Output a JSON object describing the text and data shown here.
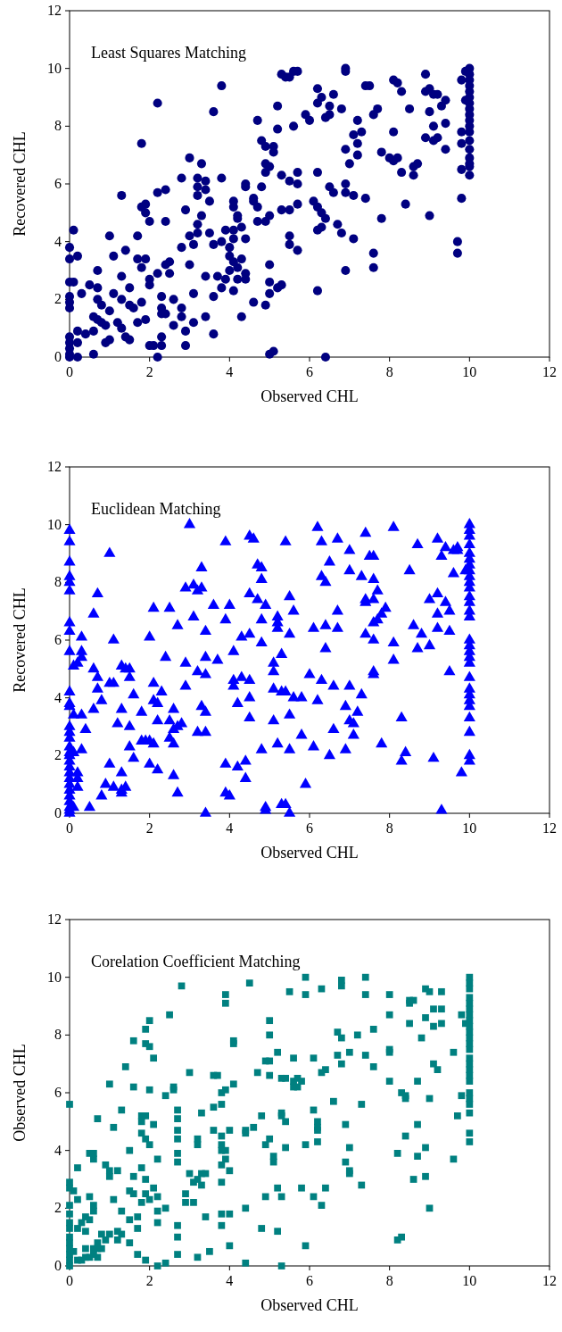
{
  "chart_data": [
    {
      "type": "scatter",
      "title": "Least Squares Matching",
      "xlabel": "Observed CHL",
      "ylabel": "Recovered CHL",
      "xlim": [
        0,
        12
      ],
      "ylim": [
        0,
        12
      ],
      "xticks": [
        0,
        2,
        4,
        6,
        8,
        10,
        12
      ],
      "yticks": [
        0,
        2,
        4,
        6,
        8,
        10,
        12
      ],
      "grid": false,
      "marker": "circle",
      "color": "#000080",
      "x": [
        0,
        0,
        0,
        0,
        0,
        0,
        0,
        0,
        0,
        0,
        0,
        0.1,
        0.2,
        0.1,
        0.2,
        0.2,
        0.2,
        0.3,
        0.4,
        0.5,
        0.6,
        0.6,
        0.6,
        0.7,
        0.7,
        0.7,
        0.7,
        0.8,
        0.8,
        0.9,
        0.9,
        1.0,
        1.0,
        1.0,
        1.1,
        1.1,
        1.2,
        1.3,
        1.3,
        1.3,
        1.3,
        1.4,
        1.5,
        1.4,
        1.5,
        1.5,
        1.6,
        1.7,
        1.7,
        1.7,
        1.8,
        1.8,
        1.8,
        1.8,
        1.9,
        1.9,
        1.9,
        1.9,
        2.0,
        2.0,
        2.0,
        2.0,
        2.1,
        2.2,
        2.2,
        2.2,
        2.2,
        2.3,
        2.3,
        2.3,
        2.3,
        2.3,
        2.4,
        2.4,
        2.4,
        2.4,
        2.5,
        2.5,
        2.6,
        2.6,
        2.8,
        2.8,
        2.8,
        2.8,
        2.9,
        2.9,
        2.9,
        3.0,
        3.0,
        3.0,
        3.1,
        3.1,
        3.1,
        3.2,
        3.2,
        3.2,
        3.2,
        3.2,
        3.3,
        3.3,
        3.4,
        3.4,
        3.4,
        3.4,
        3.5,
        3.5,
        3.6,
        3.6,
        3.6,
        3.6,
        3.7,
        3.8,
        3.8,
        3.8,
        3.8,
        3.9,
        3.9,
        4.0,
        4.0,
        4.0,
        4.1,
        4.1,
        4.1,
        4.1,
        4.1,
        4.1,
        4.2,
        4.2,
        4.2,
        4.2,
        4.3,
        4.3,
        4.3,
        4.4,
        4.4,
        4.4,
        4.4,
        4.4,
        4.6,
        4.6,
        4.6,
        4.7,
        4.7,
        4.7,
        4.8,
        4.8,
        4.9,
        4.9,
        4.9,
        4.9,
        4.9,
        5.0,
        5.0,
        5.0,
        5.0,
        5.0,
        5.0,
        5.1,
        5.1,
        5.1,
        5.2,
        5.2,
        5.2,
        5.3,
        5.3,
        5.3,
        5.3,
        5.4,
        5.5,
        5.5,
        5.5,
        5.5,
        5.5,
        5.6,
        5.6,
        5.7,
        5.7,
        5.7,
        5.7,
        5.7,
        5.9,
        6.0,
        6.1,
        6.2,
        6.2,
        6.2,
        6.2,
        6.2,
        6.2,
        6.3,
        6.3,
        6.3,
        6.4,
        6.4,
        6.4,
        6.5,
        6.5,
        6.5,
        6.6,
        6.6,
        6.7,
        6.8,
        6.8,
        6.9,
        6.9,
        6.9,
        6.9,
        6.9,
        6.9,
        7.0,
        7.1,
        7.1,
        7.1,
        7.2,
        7.2,
        7.2,
        7.3,
        7.4,
        7.5,
        7.4,
        7.6,
        7.6,
        7.6,
        7.7,
        7.8,
        7.8,
        8.0,
        8.1,
        8.1,
        8.1,
        8.2,
        8.2,
        8.3,
        8.3,
        8.4,
        8.5,
        8.6,
        8.6,
        8.7,
        8.9,
        8.9,
        8.9,
        9.0,
        9.0,
        9.0,
        9.1,
        9.1,
        9.1,
        9.2,
        9.2,
        9.3,
        9.4,
        9.4,
        9.4,
        9.7,
        9.7,
        9.8,
        9.8,
        9.8,
        9.8,
        9.8,
        9.9,
        9.9,
        10,
        10,
        10,
        10,
        10,
        10,
        10,
        10,
        10,
        10,
        10,
        10,
        10,
        10,
        10,
        10,
        10,
        10
      ],
      "values": [
        3.8,
        3.4,
        2.6,
        2.1,
        1.9,
        1.7,
        0.7,
        0.5,
        0.3,
        0.1,
        0,
        4.4,
        3.5,
        2.6,
        0.9,
        0,
        0.5,
        2.2,
        0.8,
        2.5,
        1.4,
        0.9,
        0.1,
        3.0,
        2.4,
        2.0,
        1.3,
        1.2,
        1.8,
        1.1,
        0.5,
        0.6,
        1.6,
        4.2,
        3.5,
        2.2,
        1.2,
        5.6,
        2.8,
        2.0,
        1.0,
        3.7,
        2.4,
        0.7,
        0.6,
        1.8,
        1.7,
        4.2,
        3.4,
        1.2,
        1.9,
        7.4,
        5.2,
        3.1,
        5.3,
        5.0,
        3.4,
        1.3,
        4.7,
        2.7,
        2.5,
        0.4,
        0.4,
        8.8,
        5.7,
        2.9,
        0,
        2.1,
        1.7,
        1.5,
        0.7,
        0.4,
        5.8,
        4.7,
        3.2,
        1.5,
        3.3,
        2.9,
        2.0,
        1.1,
        6.2,
        3.8,
        1.7,
        1.4,
        5.1,
        0.9,
        0.4,
        6.9,
        4.2,
        3.2,
        2.2,
        1.2,
        3.9,
        6.2,
        5.9,
        5.6,
        4.6,
        4.3,
        6.7,
        4.9,
        6.1,
        5.8,
        2.8,
        1.4,
        5.4,
        4.3,
        8.5,
        3.9,
        2.1,
        0.8,
        2.8,
        9.4,
        6.2,
        4.0,
        2.4,
        2.7,
        4.4,
        3.8,
        3.5,
        3.0,
        5.4,
        5.2,
        4.4,
        4.1,
        3.3,
        2.3,
        4.9,
        4.8,
        3.1,
        2.7,
        4.5,
        1.4,
        3.4,
        5.9,
        6.0,
        4.1,
        2.9,
        2.7,
        5.4,
        5.5,
        1.9,
        8.2,
        5.2,
        4.7,
        7.5,
        5.9,
        7.3,
        6.4,
        6.7,
        4.7,
        1.8,
        6.6,
        4.9,
        3.2,
        2.6,
        2.2,
        0.1,
        0.2,
        7.3,
        7.1,
        8.7,
        7.9,
        2.4,
        9.8,
        6.3,
        5.1,
        2.5,
        9.7,
        9.7,
        6.1,
        5.1,
        4.2,
        3.9,
        9.9,
        8.0,
        9.9,
        6.4,
        6.0,
        3.7,
        5.3,
        8.4,
        8.2,
        5.4,
        9.3,
        8.8,
        6.4,
        5.2,
        4.4,
        2.3,
        9.0,
        5.0,
        4.5,
        0,
        4.8,
        8.3,
        8.7,
        8.4,
        5.9,
        9.1,
        5.7,
        4.6,
        8.6,
        4.3,
        10,
        9.9,
        7.2,
        6.0,
        5.7,
        3.0,
        6.7,
        5.6,
        4.1,
        7.7,
        8.2,
        7.4,
        7.0,
        7.8,
        9.4,
        9.4,
        5.5,
        8.4,
        3.1,
        3.6,
        8.6,
        7.1,
        4.8,
        6.9,
        9.6,
        7.8,
        6.8,
        6.9,
        9.5,
        9.2,
        6.4,
        5.3,
        8.6,
        6.6,
        6.3,
        6.7,
        9.8,
        9.2,
        7.6,
        9.3,
        8.5,
        4.9,
        9.1,
        7.5,
        8.0,
        7.6,
        9.1,
        8.7,
        8.9,
        8.1,
        7.2,
        4.0,
        3.6,
        9.6,
        7.8,
        7.4,
        5.5,
        6.5,
        8.9,
        9.9,
        10.0,
        9.8,
        9.6,
        9.4,
        9.2,
        9.0,
        8.8,
        8.6,
        8.4,
        8.2,
        8.0,
        7.8,
        7.5,
        7.2,
        6.9,
        6.7,
        6.6,
        6.3
      ]
    },
    {
      "type": "scatter",
      "title": "Euclidean Matching",
      "xlabel": "Observed CHL",
      "ylabel": "Recovered CHL",
      "xlim": [
        0,
        12
      ],
      "ylim": [
        0,
        12
      ],
      "xticks": [
        0,
        2,
        4,
        6,
        8,
        10,
        12
      ],
      "yticks": [
        0,
        2,
        4,
        6,
        8,
        10,
        12
      ],
      "grid": false,
      "marker": "triangle",
      "color": "#0000ff",
      "x": [
        0,
        0,
        0,
        0,
        0,
        0,
        0,
        0,
        0,
        0,
        0,
        0,
        0,
        0,
        0,
        0,
        0,
        0,
        0,
        0,
        0,
        0,
        0,
        0,
        0,
        0,
        0,
        0,
        0,
        0.1,
        0.1,
        0.1,
        0.1,
        0.2,
        0.2,
        0.2,
        0.2,
        0.3,
        0.3,
        0.3,
        0.3,
        0.3,
        0.4,
        0.5,
        0.6,
        0.6,
        0.6,
        0.7,
        0.7,
        0.7,
        0.8,
        0.8,
        0.9,
        1.0,
        1.0,
        1.0,
        1.1,
        1.1,
        1.1,
        1.2,
        1.3,
        1.3,
        1.3,
        1.3,
        1.3,
        1.4,
        1.4,
        1.5,
        1.5,
        1.5,
        1.5,
        1.6,
        1.6,
        1.8,
        1.8,
        1.9,
        2.0,
        2.0,
        2.0,
        2.1,
        2.1,
        2.1,
        2.1,
        2.2,
        2.2,
        2.2,
        2.3,
        2.4,
        2.5,
        2.5,
        2.5,
        2.6,
        2.6,
        2.6,
        2.6,
        2.7,
        2.7,
        2.7,
        2.8,
        2.9,
        2.9,
        2.9,
        3.0,
        3.1,
        3.1,
        3.2,
        3.2,
        3.2,
        3.3,
        3.3,
        3.3,
        3.4,
        3.4,
        3.4,
        3.4,
        3.4,
        3.4,
        3.6,
        3.7,
        3.9,
        3.9,
        3.9,
        3.9,
        4.0,
        4.0,
        4.1,
        4.1,
        4.1,
        4.2,
        4.2,
        4.3,
        4.3,
        4.4,
        4.4,
        4.5,
        4.5,
        4.5,
        4.5,
        4.5,
        4.5,
        4.6,
        4.7,
        4.7,
        4.8,
        4.8,
        4.8,
        4.8,
        4.8,
        4.9,
        4.9,
        4.9,
        5.1,
        5.1,
        5.1,
        5.1,
        5.2,
        5.2,
        5.2,
        5.2,
        5.3,
        5.3,
        5.4,
        5.3,
        5.4,
        5.5,
        5.4,
        5.5,
        5.5,
        5.5,
        5.5,
        5.6,
        5.6,
        5.8,
        5.8,
        5.9,
        6.0,
        6.1,
        6.1,
        6.2,
        6.2,
        6.3,
        6.3,
        6.3,
        6.4,
        6.4,
        6.4,
        6.5,
        6.5,
        6.6,
        6.6,
        6.7,
        6.7,
        6.7,
        6.9,
        6.9,
        7.0,
        7.0,
        7.0,
        7.0,
        7.1,
        7.1,
        7.2,
        7.3,
        7.3,
        7.4,
        7.4,
        7.4,
        7.4,
        7.5,
        7.6,
        7.6,
        7.6,
        7.6,
        7.6,
        7.6,
        7.6,
        7.7,
        7.7,
        7.8,
        7.8,
        7.9,
        8.1,
        8.1,
        8.1,
        8.3,
        8.3,
        8.4,
        8.5,
        8.6,
        8.7,
        8.7,
        8.8,
        9.0,
        9.0,
        9.1,
        9.2,
        9.2,
        9.2,
        9.2,
        9.3,
        9.3,
        9.4,
        9.4,
        9.5,
        9.5,
        9.5,
        9.6,
        9.6,
        9.7,
        9.7,
        9.8,
        9.9,
        10,
        10,
        10,
        10,
        10,
        10,
        10,
        10,
        10,
        10,
        10,
        10,
        10,
        10,
        10,
        10,
        10,
        10,
        10,
        10,
        10,
        10,
        10,
        10,
        10,
        10,
        10,
        10,
        10
      ],
      "values": [
        9.8,
        9.4,
        8.7,
        8.2,
        8.0,
        7.7,
        6.6,
        6.3,
        5.6,
        4.2,
        3.8,
        3.7,
        3.0,
        2.8,
        2.6,
        2.3,
        2.1,
        2.0,
        1.8,
        1.6,
        1.4,
        1.2,
        1.0,
        0.8,
        0.6,
        0.4,
        0.2,
        0.1,
        0,
        5.1,
        3.4,
        2.1,
        0.2,
        5.2,
        1.4,
        1.2,
        0.9,
        6.1,
        5.6,
        5.4,
        3.4,
        2.2,
        2.9,
        0.2,
        6.9,
        5.0,
        3.6,
        7.6,
        4.7,
        4.3,
        3.9,
        0.6,
        1.0,
        9.0,
        4.5,
        1.7,
        6.0,
        4.5,
        0.9,
        3.1,
        5.1,
        3.6,
        1.4,
        0.8,
        0.7,
        5.0,
        0.9,
        5.0,
        4.7,
        3.0,
        2.3,
        4.1,
        1.9,
        3.5,
        2.5,
        2.5,
        2.5,
        6.1,
        1.7,
        7.1,
        4.5,
        3.9,
        2.4,
        3.8,
        3.2,
        1.5,
        4.2,
        5.4,
        7.1,
        3.2,
        2.6,
        3.6,
        2.9,
        2.4,
        1.3,
        6.5,
        3.0,
        0.7,
        3.1,
        7.8,
        4.4,
        5.2,
        10.0,
        7.9,
        6.8,
        7.7,
        4.9,
        2.8,
        8.5,
        7.8,
        3.7,
        6.3,
        5.4,
        4.8,
        3.5,
        2.8,
        0,
        7.2,
        5.3,
        9.4,
        6.7,
        1.7,
        0.7,
        7.2,
        0.6,
        5.6,
        4.6,
        4.4,
        3.8,
        1.6,
        6.1,
        4.7,
        1.8,
        1.2,
        9.6,
        7.6,
        6.2,
        4.6,
        4.0,
        3.3,
        9.5,
        8.6,
        7.4,
        8.5,
        8.1,
        6.7,
        5.9,
        2.2,
        7.2,
        0.2,
        0.1,
        5.2,
        4.9,
        4.3,
        3.2,
        6.8,
        6.6,
        6.4,
        2.4,
        5.5,
        4.2,
        4.2,
        0.3,
        0.3,
        0,
        9.4,
        7.5,
        6.2,
        3.4,
        2.2,
        7.0,
        4.0,
        4.0,
        2.7,
        1.0,
        4.8,
        6.4,
        2.3,
        9.9,
        3.9,
        9.4,
        8.2,
        4.6,
        8.0,
        6.5,
        5.7,
        8.7,
        2.0,
        4.4,
        2.9,
        9.5,
        7.0,
        6.4,
        3.7,
        2.2,
        9.1,
        8.4,
        4.4,
        3.2,
        3.1,
        2.7,
        3.5,
        8.2,
        4.1,
        9.7,
        7.4,
        7.3,
        6.2,
        8.9,
        8.9,
        8.1,
        7.4,
        6.6,
        6.0,
        4.9,
        4.8,
        7.7,
        6.7,
        6.9,
        2.4,
        7.1,
        9.9,
        5.9,
        5.3,
        3.3,
        1.8,
        2.1,
        8.4,
        6.5,
        9.3,
        5.7,
        6.2,
        7.4,
        5.8,
        1.9,
        7.6,
        6.4,
        6.9,
        9.5,
        8.9,
        0.1,
        9.2,
        7.3,
        7.0,
        6.3,
        4.9,
        8.3,
        9.1,
        9.2,
        9.1,
        1.4,
        8.4,
        10.0,
        9.8,
        9.6,
        9.3,
        9.0,
        8.8,
        8.6,
        8.4,
        8.2,
        8.0,
        7.8,
        7.5,
        7.3,
        7.0,
        6.8,
        6.0,
        5.8,
        5.6,
        5.4,
        5.2,
        4.7,
        4.3,
        4.1,
        3.9,
        3.7,
        3.3,
        2.8,
        2.0,
        1.8
      ]
    },
    {
      "type": "scatter",
      "title": "Corelation Coefficient Matching",
      "xlabel": "Observed CHL",
      "ylabel": "Observed CHL",
      "xlim": [
        0,
        12
      ],
      "ylim": [
        0,
        12
      ],
      "xticks": [
        0,
        2,
        4,
        6,
        8,
        10,
        12
      ],
      "yticks": [
        0,
        2,
        4,
        6,
        8,
        10,
        12
      ],
      "grid": false,
      "marker": "square",
      "color": "#008080",
      "x": [
        0,
        0,
        0,
        0,
        0,
        0,
        0,
        0,
        0,
        0,
        0,
        0,
        0,
        0.1,
        0.1,
        0.2,
        0.2,
        0.2,
        0.2,
        0.3,
        0.3,
        0.4,
        0.4,
        0.4,
        0.4,
        0.5,
        0.5,
        0.5,
        0.5,
        0.6,
        0.6,
        0.6,
        0.6,
        0.6,
        0.6,
        0.7,
        0.7,
        0.7,
        0.7,
        0.8,
        0.8,
        0.9,
        1.0,
        1.0,
        1.0,
        0.9,
        1.1,
        1.0,
        1.2,
        1.2,
        1.2,
        1.1,
        1.3,
        1.3,
        1.3,
        1.4,
        1.5,
        1.5,
        1.5,
        1.5,
        1.6,
        1.6,
        1.6,
        1.6,
        1.7,
        1.7,
        1.7,
        1.8,
        1.8,
        1.8,
        1.8,
        1.8,
        1.9,
        1.9,
        1.9,
        1.9,
        1.9,
        1.9,
        1.9,
        2.0,
        2.0,
        2.0,
        2.0,
        2.0,
        2.1,
        2.1,
        2.1,
        2.2,
        2.2,
        2.2,
        2.2,
        2.2,
        2.4,
        2.4,
        2.4,
        2.5,
        2.6,
        2.6,
        2.7,
        2.7,
        2.7,
        2.7,
        2.7,
        2.7,
        2.7,
        2.7,
        2.7,
        2.8,
        2.9,
        2.9,
        3.0,
        3.0,
        3.1,
        3.1,
        3.2,
        3.2,
        3.2,
        3.2,
        3.3,
        3.3,
        3.3,
        3.4,
        3.4,
        3.6,
        3.6,
        3.6,
        3.5,
        3.7,
        3.8,
        3.8,
        3.8,
        3.8,
        3.8,
        3.8,
        3.8,
        3.8,
        3.8,
        3.9,
        3.9,
        3.9,
        3.9,
        3.9,
        4.0,
        4.0,
        4.0,
        4.0,
        4.1,
        4.1,
        4.1,
        4.4,
        4.4,
        4.4,
        4.4,
        4.5,
        4.6,
        4.7,
        4.8,
        4.8,
        4.9,
        4.9,
        4.9,
        5.0,
        5.0,
        5.0,
        5.0,
        5.0,
        5.1,
        5.1,
        5.2,
        5.2,
        5.2,
        5.3,
        5.3,
        5.3,
        5.3,
        5.3,
        5.4,
        5.4,
        5.4,
        5.5,
        5.6,
        5.6,
        5.6,
        5.7,
        5.7,
        5.8,
        5.8,
        5.9,
        5.9,
        5.9,
        5.9,
        6.1,
        6.1,
        6.1,
        6.2,
        6.2,
        6.2,
        6.2,
        6.3,
        6.3,
        6.3,
        6.4,
        6.4,
        6.6,
        6.7,
        6.7,
        6.8,
        6.8,
        6.8,
        6.8,
        6.9,
        6.9,
        7.0,
        7.0,
        7.0,
        7.0,
        7.2,
        7.3,
        7.3,
        7.4,
        7.4,
        7.4,
        7.6,
        7.6,
        8.0,
        8.0,
        8.0,
        8.0,
        8.0,
        8.2,
        8.2,
        8.3,
        8.3,
        8.4,
        8.4,
        8.4,
        8.5,
        8.5,
        8.5,
        8.6,
        8.6,
        8.7,
        8.7,
        8.7,
        8.8,
        8.9,
        8.9,
        8.9,
        8.9,
        9.0,
        9.0,
        9.0,
        9.1,
        9.1,
        9.1,
        9.2,
        9.3,
        9.3,
        9.3,
        9.6,
        9.6,
        9.7,
        9.8,
        9.8,
        9.9,
        10,
        10,
        10,
        10,
        10,
        10,
        10,
        10,
        10,
        10,
        10,
        10,
        10,
        10,
        10,
        10,
        10,
        10,
        10,
        10,
        10,
        10,
        10,
        10
      ],
      "values": [
        5.6,
        2.9,
        2.7,
        2.1,
        1.8,
        1.5,
        1.3,
        1.0,
        0.8,
        0.6,
        0.4,
        0.2,
        0,
        2.6,
        0.5,
        3.4,
        2.3,
        1.3,
        0.2,
        1.5,
        0.2,
        1.7,
        1.2,
        0.6,
        0.3,
        3.9,
        2.4,
        1.6,
        0.3,
        3.7,
        3.9,
        0.6,
        0.4,
        2.1,
        1.9,
        5.1,
        0.8,
        0.6,
        0.3,
        1.1,
        0.6,
        3.5,
        6.3,
        3.1,
        3.3,
        0.9,
        4.8,
        1.1,
        3.3,
        1.2,
        0.9,
        2.3,
        5.4,
        1.9,
        1.1,
        6.9,
        4.0,
        2.6,
        1.6,
        0.8,
        7.8,
        6.2,
        3.1,
        2.5,
        1.3,
        1.7,
        0.4,
        5.2,
        5.0,
        4.6,
        3.4,
        2.2,
        8.2,
        7.7,
        5.2,
        4.4,
        3.0,
        2.5,
        0.2,
        8.5,
        7.6,
        6.1,
        4.2,
        2.3,
        7.2,
        4.9,
        2.7,
        3.7,
        2.4,
        1.9,
        1.5,
        0,
        5.9,
        2.0,
        0.1,
        8.7,
        6.2,
        6.1,
        5.4,
        5.1,
        4.7,
        4.4,
        3.9,
        3.6,
        1.4,
        1.0,
        0.4,
        9.7,
        2.5,
        2.2,
        6.7,
        3.2,
        2.9,
        2.2,
        4.2,
        4.4,
        3.0,
        0.3,
        5.3,
        3.2,
        2.8,
        3.2,
        1.7,
        6.6,
        5.5,
        4.7,
        0.5,
        6.6,
        5.6,
        6.0,
        4.5,
        4.2,
        4.0,
        3.5,
        2.9,
        1.8,
        1.4,
        9.4,
        9.1,
        6.1,
        4.0,
        3.7,
        4.7,
        3.3,
        1.8,
        0.7,
        7.8,
        7.7,
        6.3,
        4.7,
        4.6,
        2.0,
        0.1,
        9.8,
        4.8,
        6.7,
        5.2,
        1.3,
        7.1,
        4.2,
        2.4,
        8.5,
        8.0,
        7.1,
        6.6,
        4.4,
        3.6,
        3.8,
        7.4,
        1.2,
        2.7,
        6.5,
        5.2,
        2.4,
        5.3,
        0,
        6.5,
        5.0,
        4.1,
        9.5,
        7.2,
        6.4,
        6.2,
        6.5,
        6.2,
        6.4,
        2.7,
        10.0,
        9.4,
        4.2,
        0.7,
        7.2,
        2.4,
        5.4,
        5.0,
        4.8,
        4.7,
        4.3,
        9.6,
        6.7,
        2.1,
        6.8,
        2.7,
        5.7,
        8.1,
        7.3,
        9.9,
        9.7,
        7.9,
        7.0,
        4.9,
        3.6,
        4.1,
        3.3,
        3.2,
        7.4,
        8.0,
        5.6,
        2.8,
        10.0,
        9.4,
        7.3,
        8.2,
        6.9,
        9.4,
        7.5,
        7.4,
        8.7,
        6.4,
        3.9,
        0.9,
        1.0,
        6.0,
        5.8,
        5.9,
        4.5,
        9.2,
        9.1,
        8.4,
        9.2,
        3.0,
        6.4,
        4.9,
        3.8,
        7.9,
        9.6,
        8.6,
        4.1,
        3.1,
        9.5,
        5.8,
        2.0,
        8.9,
        8.3,
        7.0,
        6.8,
        9.5,
        8.4,
        8.9,
        7.4,
        3.7,
        5.2,
        8.7,
        5.9,
        8.4,
        10.0,
        9.8,
        9.6,
        9.3,
        9.1,
        8.9,
        8.7,
        8.5,
        8.3,
        8.1,
        7.9,
        7.7,
        7.5,
        7.2,
        7.0,
        6.8,
        6.6,
        6.4,
        6.0,
        5.8,
        5.6,
        5.3,
        4.6,
        4.3
      ]
    }
  ]
}
